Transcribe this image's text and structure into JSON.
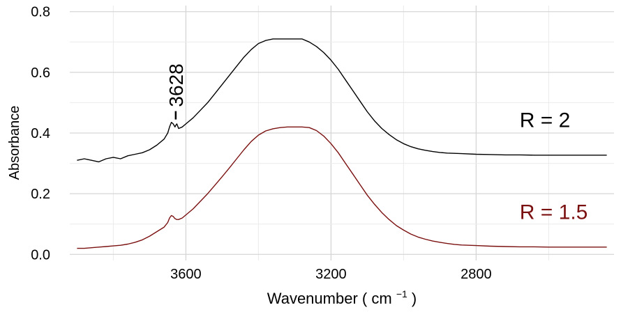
{
  "chart_data": {
    "type": "line",
    "xlabel": "Wavenumber",
    "xlabel_unit": "cm",
    "xlabel_unit_exp": "−1",
    "ylabel": "Absorbance",
    "xlim": [
      3920,
      2420
    ],
    "x_reversed": true,
    "ylim": [
      -0.02,
      0.82
    ],
    "xticks": [
      3600,
      3200,
      2800
    ],
    "yticks": [
      0.0,
      0.2,
      0.4,
      0.6,
      0.8
    ],
    "ytick_labels": [
      "0.0",
      "0.2",
      "0.4",
      "0.6",
      "0.8"
    ],
    "grid": true,
    "legend": "none",
    "series": [
      {
        "label": "R = 2",
        "color": "#000000",
        "x": [
          3900,
          3880,
          3860,
          3840,
          3820,
          3800,
          3780,
          3760,
          3740,
          3720,
          3700,
          3680,
          3660,
          3650,
          3645,
          3640,
          3635,
          3630,
          3628,
          3625,
          3620,
          3610,
          3600,
          3580,
          3560,
          3540,
          3520,
          3500,
          3480,
          3460,
          3440,
          3420,
          3400,
          3380,
          3360,
          3340,
          3320,
          3300,
          3280,
          3260,
          3240,
          3220,
          3200,
          3180,
          3160,
          3140,
          3120,
          3100,
          3080,
          3060,
          3040,
          3020,
          3000,
          2980,
          2960,
          2940,
          2920,
          2900,
          2880,
          2860,
          2840,
          2800,
          2760,
          2720,
          2680,
          2640,
          2600,
          2560,
          2520,
          2480,
          2440
        ],
        "y": [
          0.31,
          0.315,
          0.31,
          0.305,
          0.315,
          0.32,
          0.315,
          0.325,
          0.33,
          0.335,
          0.345,
          0.36,
          0.38,
          0.4,
          0.42,
          0.435,
          0.43,
          0.42,
          0.425,
          0.43,
          0.415,
          0.42,
          0.43,
          0.45,
          0.475,
          0.5,
          0.53,
          0.56,
          0.59,
          0.62,
          0.65,
          0.675,
          0.695,
          0.705,
          0.71,
          0.71,
          0.71,
          0.71,
          0.71,
          0.7,
          0.685,
          0.665,
          0.64,
          0.61,
          0.575,
          0.54,
          0.505,
          0.47,
          0.44,
          0.415,
          0.395,
          0.378,
          0.365,
          0.355,
          0.348,
          0.343,
          0.339,
          0.336,
          0.334,
          0.333,
          0.332,
          0.33,
          0.329,
          0.328,
          0.328,
          0.327,
          0.327,
          0.327,
          0.327,
          0.327,
          0.327
        ]
      },
      {
        "label": "R = 1.5",
        "color": "#7b1010",
        "x": [
          3900,
          3880,
          3860,
          3840,
          3820,
          3800,
          3780,
          3760,
          3740,
          3720,
          3700,
          3680,
          3660,
          3650,
          3645,
          3640,
          3635,
          3630,
          3625,
          3620,
          3610,
          3600,
          3580,
          3560,
          3540,
          3520,
          3500,
          3480,
          3460,
          3440,
          3420,
          3400,
          3380,
          3360,
          3340,
          3320,
          3300,
          3280,
          3260,
          3240,
          3220,
          3200,
          3180,
          3160,
          3140,
          3120,
          3100,
          3080,
          3060,
          3040,
          3020,
          3000,
          2980,
          2960,
          2940,
          2920,
          2900,
          2880,
          2860,
          2840,
          2800,
          2760,
          2720,
          2680,
          2640,
          2600,
          2560,
          2520,
          2480,
          2440
        ],
        "y": [
          0.02,
          0.02,
          0.022,
          0.024,
          0.026,
          0.028,
          0.03,
          0.034,
          0.04,
          0.048,
          0.06,
          0.075,
          0.09,
          0.105,
          0.12,
          0.128,
          0.125,
          0.118,
          0.115,
          0.115,
          0.12,
          0.13,
          0.15,
          0.175,
          0.2,
          0.228,
          0.256,
          0.285,
          0.315,
          0.345,
          0.372,
          0.393,
          0.407,
          0.414,
          0.418,
          0.42,
          0.42,
          0.42,
          0.418,
          0.408,
          0.39,
          0.365,
          0.335,
          0.3,
          0.265,
          0.23,
          0.195,
          0.165,
          0.138,
          0.115,
          0.095,
          0.08,
          0.067,
          0.057,
          0.05,
          0.044,
          0.04,
          0.036,
          0.033,
          0.031,
          0.029,
          0.027,
          0.026,
          0.025,
          0.025,
          0.024,
          0.024,
          0.024,
          0.024,
          0.024
        ]
      }
    ],
    "annotations": [
      {
        "text": "3628",
        "x": 3628,
        "y": 0.44,
        "rotate": -90,
        "color": "#000000"
      }
    ]
  }
}
